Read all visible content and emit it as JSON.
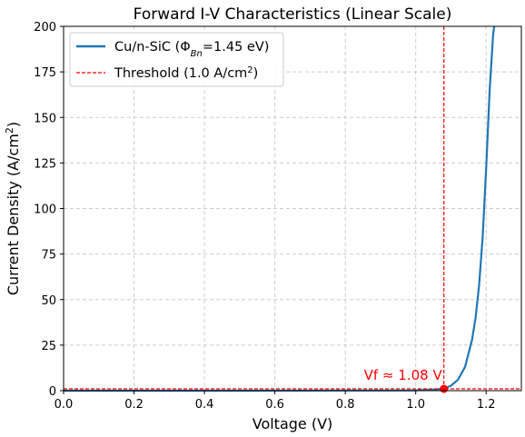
{
  "chart_data": {
    "type": "line",
    "title": "Forward I-V Characteristics (Linear Scale)",
    "xlabel": "Voltage (V)",
    "ylabel_main": "Current Density (A/cm",
    "ylabel_sup": "2",
    "ylabel_end": ")",
    "xlim": [
      0.0,
      1.3
    ],
    "ylim": [
      0,
      200
    ],
    "xticks": [
      0.0,
      0.2,
      0.4,
      0.6,
      0.8,
      1.0,
      1.2
    ],
    "xtick_labels": [
      "0.0",
      "0.2",
      "0.4",
      "0.6",
      "0.8",
      "1.0",
      "1.2"
    ],
    "yticks": [
      0,
      25,
      50,
      75,
      100,
      125,
      150,
      175,
      200
    ],
    "ytick_labels": [
      "0",
      "25",
      "50",
      "75",
      "100",
      "125",
      "150",
      "175",
      "200"
    ],
    "grid": true,
    "legend_position": "top-left",
    "series": [
      {
        "name": "Cu/n-SiC (Φ",
        "name_sub": "Bn",
        "name_end": "=1.45 eV)",
        "style": "solid",
        "color": "#1f77b4",
        "x": [
          0.0,
          0.5,
          1.0,
          1.05,
          1.075,
          1.08,
          1.1,
          1.12,
          1.14,
          1.16,
          1.17,
          1.18,
          1.19,
          1.2,
          1.21,
          1.22,
          1.223
        ],
        "y": [
          0.0,
          0.0,
          0.15,
          0.6,
          1.0,
          1.2,
          2.7,
          6.0,
          13.0,
          28.0,
          40.0,
          58.0,
          84.0,
          122.0,
          165.0,
          196.0,
          200.0
        ]
      },
      {
        "name": "Threshold (1.0 A/cm",
        "name_sup": "2",
        "name_end": ")",
        "style": "dashed",
        "color": "#ff0000",
        "y_const": 1.0
      }
    ],
    "vline": {
      "x": 1.08,
      "color": "#ff0000",
      "style": "dashed"
    },
    "marker": {
      "x": 1.08,
      "y": 1.0,
      "color": "#ff0000"
    },
    "annotation": {
      "text": "Vf ≈ 1.08 V",
      "x": 1.08,
      "y": 1.0,
      "color": "#ff0000"
    }
  }
}
